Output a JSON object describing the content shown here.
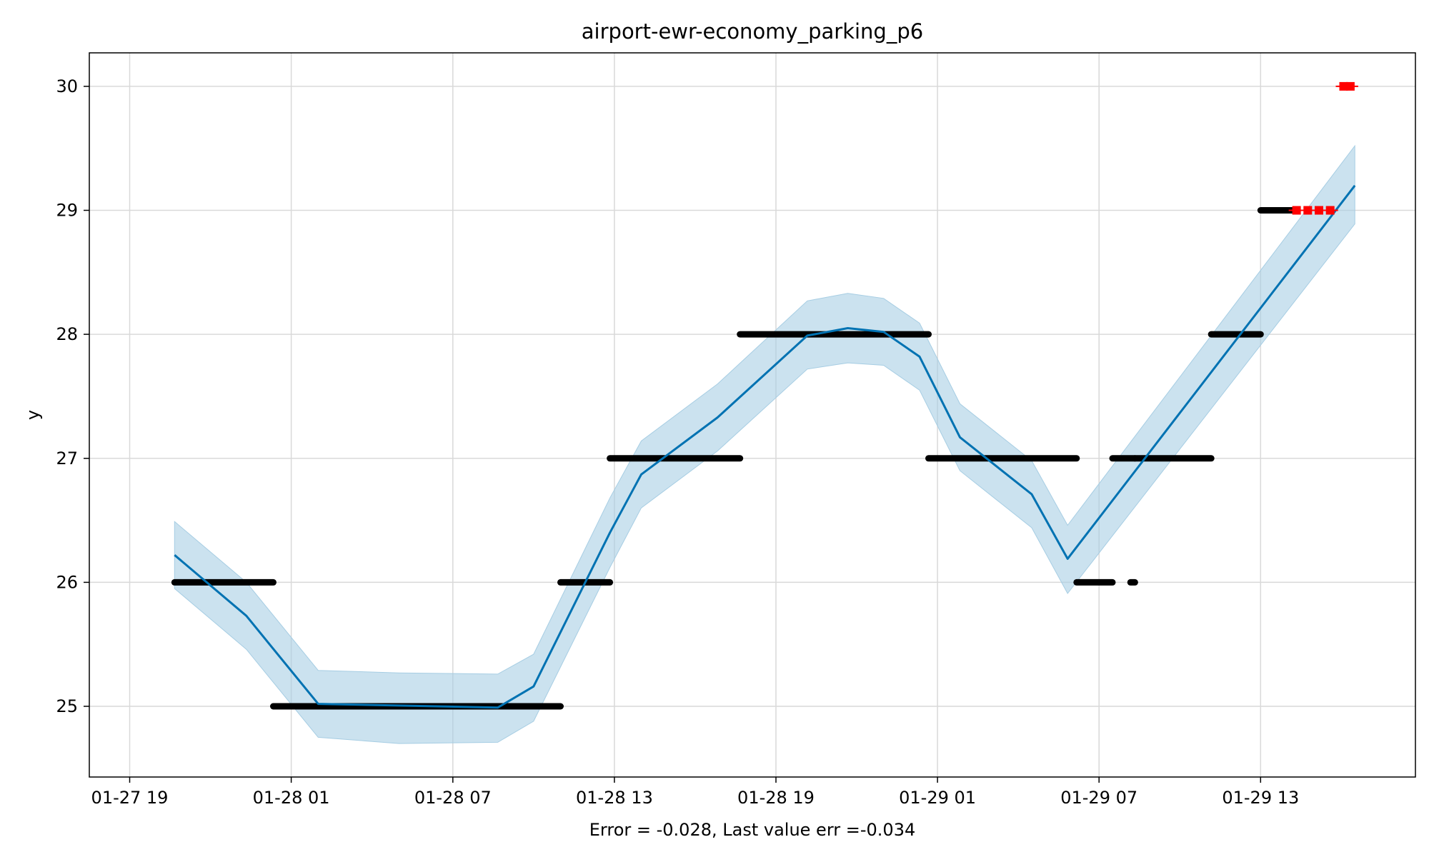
{
  "chart_data": {
    "type": "line",
    "title": "airport-ewr-economy_parking_p6",
    "xlabel": "Error = -0.028, Last value err =-0.034",
    "ylabel": "y",
    "x_tick_labels": [
      "01-27 19",
      "01-28 01",
      "01-28 07",
      "01-28 13",
      "01-28 19",
      "01-29 01",
      "01-29 07",
      "01-29 13"
    ],
    "x_tick_times": [
      "2024-01-27T19:00",
      "2024-01-28T01:00",
      "2024-01-28T07:00",
      "2024-01-28T13:00",
      "2024-01-28T19:00",
      "2024-01-29T01:00",
      "2024-01-29T07:00",
      "2024-01-29T13:00"
    ],
    "y_ticks": [
      25,
      26,
      27,
      28,
      29,
      30
    ],
    "xlim": [
      "2024-01-27T17:30",
      "2024-01-29T18:45"
    ],
    "ylim": [
      24.43,
      30.27
    ],
    "grid": true,
    "colors": {
      "forecast": "#0072b2",
      "band": "#a6cde3",
      "observed": "#000000",
      "future": "#ff0000",
      "grid": "#d9d9d9"
    },
    "series": [
      {
        "role": "forecast",
        "x": [
          "2024-01-27T20:40",
          "2024-01-27T23:20",
          "2024-01-28T02:00",
          "2024-01-28T08:40",
          "2024-01-28T10:00",
          "2024-01-28T12:50",
          "2024-01-28T14:00",
          "2024-01-28T16:50",
          "2024-01-28T20:10",
          "2024-01-28T21:40",
          "2024-01-28T23:00",
          "2024-01-29T00:20",
          "2024-01-29T01:50",
          "2024-01-29T04:30",
          "2024-01-29T05:50",
          "2024-01-29T16:30"
        ],
        "y": [
          26.22,
          25.73,
          25.02,
          24.99,
          25.16,
          26.4,
          26.87,
          27.33,
          27.99,
          28.05,
          28.02,
          27.82,
          27.17,
          26.71,
          26.19,
          29.2
        ]
      },
      {
        "role": "band",
        "x": [
          "2024-01-27T20:40",
          "2024-01-27T23:20",
          "2024-01-28T02:00",
          "2024-01-28T05:00",
          "2024-01-28T08:40",
          "2024-01-28T10:00",
          "2024-01-28T12:50",
          "2024-01-28T14:00",
          "2024-01-28T16:50",
          "2024-01-28T20:10",
          "2024-01-28T21:40",
          "2024-01-28T23:00",
          "2024-01-29T00:20",
          "2024-01-29T01:50",
          "2024-01-29T04:30",
          "2024-01-29T05:50",
          "2024-01-29T16:30"
        ],
        "upper": [
          26.49,
          26.0,
          25.29,
          25.27,
          25.26,
          25.42,
          26.68,
          27.14,
          27.6,
          28.27,
          28.33,
          28.29,
          28.09,
          27.44,
          26.98,
          26.46,
          29.52
        ],
        "lower": [
          25.95,
          25.46,
          24.75,
          24.7,
          24.71,
          24.88,
          26.12,
          26.6,
          27.06,
          27.72,
          27.77,
          27.75,
          27.55,
          26.9,
          26.44,
          25.91,
          28.89
        ]
      },
      {
        "role": "observed",
        "segments": [
          {
            "start": "2024-01-27T20:40",
            "end": "2024-01-28T00:20",
            "y": 26
          },
          {
            "start": "2024-01-28T00:20",
            "end": "2024-01-28T11:00",
            "y": 25
          },
          {
            "start": "2024-01-28T11:00",
            "end": "2024-01-28T12:50",
            "y": 26
          },
          {
            "start": "2024-01-28T12:50",
            "end": "2024-01-28T17:40",
            "y": 27
          },
          {
            "start": "2024-01-28T17:40",
            "end": "2024-01-29T00:40",
            "y": 28
          },
          {
            "start": "2024-01-29T00:40",
            "end": "2024-01-29T06:10",
            "y": 27
          },
          {
            "start": "2024-01-29T06:10",
            "end": "2024-01-29T07:30",
            "y": 26
          },
          {
            "start": "2024-01-29T08:10",
            "end": "2024-01-29T08:20",
            "y": 26
          },
          {
            "start": "2024-01-29T07:30",
            "end": "2024-01-29T08:20",
            "y": 27
          },
          {
            "start": "2024-01-29T08:20",
            "end": "2024-01-29T11:10",
            "y": 27
          },
          {
            "start": "2024-01-29T11:10",
            "end": "2024-01-29T13:00",
            "y": 28
          },
          {
            "start": "2024-01-29T13:00",
            "end": "2024-01-29T14:20",
            "y": 29
          }
        ]
      },
      {
        "role": "future",
        "points": [
          {
            "x": "2024-01-29T14:20",
            "y": 29
          },
          {
            "x": "2024-01-29T14:45",
            "y": 29
          },
          {
            "x": "2024-01-29T15:10",
            "y": 29
          },
          {
            "x": "2024-01-29T15:35",
            "y": 29
          },
          {
            "x": "2024-01-29T16:05",
            "y": 30
          },
          {
            "x": "2024-01-29T16:20",
            "y": 30
          }
        ]
      }
    ]
  }
}
